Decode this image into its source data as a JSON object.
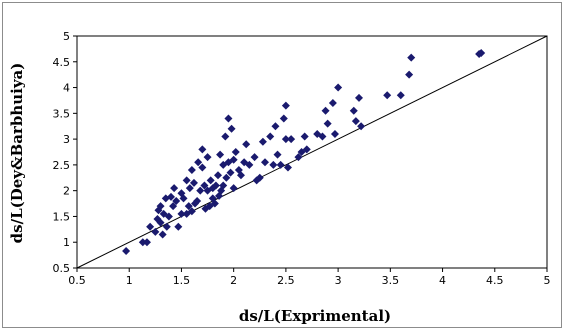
{
  "chart_data": {
    "type": "scatter",
    "title": "",
    "xlabel": "ds/L(Exprimental)",
    "ylabel": "ds/L(Dey&Barbhuiya)",
    "xlim": [
      0.5,
      5
    ],
    "ylim": [
      0.5,
      5
    ],
    "x_ticks": [
      "0.5",
      "1",
      "1.5",
      "2",
      "2.5",
      "3",
      "3.5",
      "4",
      "4.5",
      "5"
    ],
    "y_ticks": [
      "0.5",
      "1",
      "1.5",
      "2",
      "2.5",
      "3",
      "3.5",
      "4",
      "4.5",
      "5"
    ],
    "grid": false,
    "legend": "none",
    "marker": "diamond",
    "marker_color": "#1a1a6e",
    "reference_line": {
      "from": [
        0.5,
        0.5
      ],
      "to": [
        5,
        5
      ]
    },
    "points": [
      [
        0.97,
        0.83
      ],
      [
        1.13,
        1.0
      ],
      [
        1.17,
        1.0
      ],
      [
        1.2,
        1.3
      ],
      [
        1.25,
        1.2
      ],
      [
        1.27,
        1.45
      ],
      [
        1.28,
        1.62
      ],
      [
        1.3,
        1.7
      ],
      [
        1.3,
        1.38
      ],
      [
        1.32,
        1.15
      ],
      [
        1.33,
        1.55
      ],
      [
        1.35,
        1.85
      ],
      [
        1.36,
        1.3
      ],
      [
        1.38,
        1.5
      ],
      [
        1.4,
        1.88
      ],
      [
        1.42,
        1.7
      ],
      [
        1.43,
        2.05
      ],
      [
        1.45,
        1.8
      ],
      [
        1.47,
        1.3
      ],
      [
        1.5,
        1.95
      ],
      [
        1.5,
        1.55
      ],
      [
        1.52,
        1.85
      ],
      [
        1.55,
        2.2
      ],
      [
        1.55,
        1.55
      ],
      [
        1.57,
        1.7
      ],
      [
        1.58,
        2.05
      ],
      [
        1.6,
        2.4
      ],
      [
        1.6,
        1.6
      ],
      [
        1.62,
        2.15
      ],
      [
        1.63,
        1.75
      ],
      [
        1.65,
        1.8
      ],
      [
        1.66,
        2.55
      ],
      [
        1.68,
        2.0
      ],
      [
        1.7,
        2.45
      ],
      [
        1.7,
        2.8
      ],
      [
        1.72,
        2.1
      ],
      [
        1.73,
        1.65
      ],
      [
        1.75,
        2.0
      ],
      [
        1.75,
        2.65
      ],
      [
        1.77,
        1.7
      ],
      [
        1.78,
        2.2
      ],
      [
        1.8,
        1.85
      ],
      [
        1.8,
        2.05
      ],
      [
        1.82,
        1.75
      ],
      [
        1.83,
        2.1
      ],
      [
        1.85,
        2.3
      ],
      [
        1.86,
        1.9
      ],
      [
        1.87,
        2.7
      ],
      [
        1.88,
        2.0
      ],
      [
        1.9,
        2.1
      ],
      [
        1.9,
        2.5
      ],
      [
        1.92,
        3.05
      ],
      [
        1.93,
        2.25
      ],
      [
        1.95,
        3.4
      ],
      [
        1.95,
        2.55
      ],
      [
        1.97,
        2.35
      ],
      [
        1.98,
        3.2
      ],
      [
        2.0,
        2.6
      ],
      [
        2.0,
        2.05
      ],
      [
        2.02,
        2.75
      ],
      [
        2.05,
        2.4
      ],
      [
        2.07,
        2.3
      ],
      [
        2.1,
        2.55
      ],
      [
        2.12,
        2.9
      ],
      [
        2.15,
        2.5
      ],
      [
        2.2,
        2.65
      ],
      [
        2.22,
        2.2
      ],
      [
        2.25,
        2.25
      ],
      [
        2.28,
        2.95
      ],
      [
        2.3,
        2.55
      ],
      [
        2.35,
        3.05
      ],
      [
        2.38,
        2.5
      ],
      [
        2.4,
        3.25
      ],
      [
        2.42,
        2.7
      ],
      [
        2.45,
        2.5
      ],
      [
        2.48,
        3.4
      ],
      [
        2.5,
        3.65
      ],
      [
        2.5,
        3.0
      ],
      [
        2.52,
        2.45
      ],
      [
        2.55,
        3.0
      ],
      [
        2.62,
        2.65
      ],
      [
        2.65,
        2.75
      ],
      [
        2.68,
        3.05
      ],
      [
        2.7,
        2.8
      ],
      [
        2.8,
        3.1
      ],
      [
        2.85,
        3.05
      ],
      [
        2.88,
        3.55
      ],
      [
        2.9,
        3.3
      ],
      [
        2.95,
        3.7
      ],
      [
        2.97,
        3.1
      ],
      [
        3.0,
        4.0
      ],
      [
        3.15,
        3.55
      ],
      [
        3.17,
        3.35
      ],
      [
        3.2,
        3.8
      ],
      [
        3.22,
        3.25
      ],
      [
        3.47,
        3.85
      ],
      [
        3.6,
        3.85
      ],
      [
        3.68,
        4.25
      ],
      [
        3.7,
        4.58
      ],
      [
        4.35,
        4.65
      ],
      [
        4.37,
        4.67
      ]
    ]
  }
}
